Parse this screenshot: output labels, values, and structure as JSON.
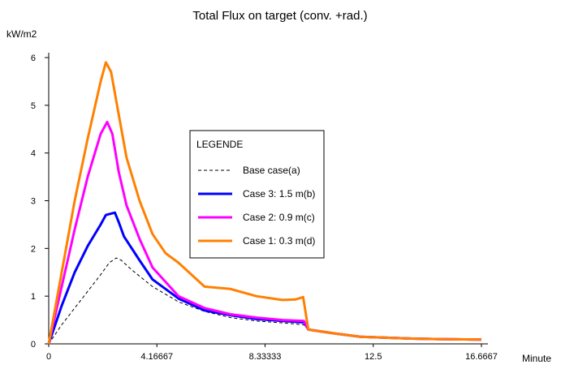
{
  "chart_data": {
    "type": "line",
    "title": "Total Flux on target (conv. +rad.)",
    "ylabel": "kW/m2",
    "xlabel": "Minute",
    "xlim": [
      0,
      16.6667
    ],
    "ylim": [
      0,
      6
    ],
    "x_ticks": [
      "0",
      "4.16667",
      "8.33333",
      "12.5",
      "16.6667"
    ],
    "x_tick_values": [
      0,
      4.16667,
      8.33333,
      12.5,
      16.6667
    ],
    "y_ticks": [
      "0",
      "1",
      "2",
      "3",
      "4",
      "5",
      "6"
    ],
    "y_tick_values": [
      0,
      1,
      2,
      3,
      4,
      5,
      6
    ],
    "grid": false,
    "legend": {
      "title": "LEGENDE",
      "placement": "center"
    },
    "series": [
      {
        "name": "Base case(a)",
        "color": "#000000",
        "style": "dashed",
        "x": [
          0,
          0.5,
          1.0,
          1.5,
          2.0,
          2.33,
          2.6,
          2.8,
          3.2,
          4.0,
          5.0,
          6.0,
          7.0,
          8.0,
          9.0,
          9.83,
          10.0,
          11.0,
          12.0,
          13.0,
          14.0,
          15.0,
          16.6667
        ],
        "y": [
          0,
          0.4,
          0.75,
          1.1,
          1.45,
          1.7,
          1.8,
          1.75,
          1.55,
          1.2,
          0.88,
          0.68,
          0.55,
          0.48,
          0.44,
          0.4,
          0.3,
          0.22,
          0.15,
          0.13,
          0.11,
          0.1,
          0.09
        ]
      },
      {
        "name": "Case 3: 1.5 m(b)",
        "color": "#0000ff",
        "style": "solid",
        "x": [
          0,
          0.5,
          1.0,
          1.5,
          2.0,
          2.2,
          2.4,
          2.55,
          2.7,
          2.9,
          3.5,
          4.0,
          5.0,
          6.0,
          7.0,
          8.0,
          9.0,
          9.83,
          10.0,
          11.0,
          12.0,
          13.0,
          14.0,
          15.0,
          16.6667
        ],
        "y": [
          0,
          0.8,
          1.5,
          2.05,
          2.5,
          2.7,
          2.73,
          2.75,
          2.55,
          2.25,
          1.75,
          1.35,
          0.95,
          0.7,
          0.6,
          0.52,
          0.48,
          0.45,
          0.3,
          0.22,
          0.15,
          0.13,
          0.11,
          0.1,
          0.09
        ]
      },
      {
        "name": "Case 2: 0.9 m(c)",
        "color": "#ff00ff",
        "style": "solid",
        "x": [
          0,
          0.5,
          1.0,
          1.5,
          2.0,
          2.25,
          2.45,
          2.7,
          3.0,
          3.5,
          4.0,
          5.0,
          6.0,
          7.0,
          8.0,
          9.0,
          9.83,
          10.0,
          11.0,
          12.0,
          13.0,
          14.0,
          15.0,
          16.6667
        ],
        "y": [
          0,
          1.2,
          2.4,
          3.5,
          4.4,
          4.65,
          4.4,
          3.6,
          2.9,
          2.2,
          1.6,
          1.0,
          0.75,
          0.62,
          0.55,
          0.5,
          0.48,
          0.3,
          0.22,
          0.15,
          0.13,
          0.11,
          0.1,
          0.09
        ]
      },
      {
        "name": "Case 1: 0.3 m(d)",
        "color": "#ff8000",
        "style": "solid",
        "x": [
          0,
          0.5,
          1.0,
          1.5,
          2.0,
          2.2,
          2.4,
          2.7,
          3.0,
          3.5,
          4.0,
          4.5,
          5.0,
          6.0,
          7.0,
          8.0,
          9.0,
          9.5,
          9.8,
          10.0,
          11.0,
          12.0,
          13.0,
          14.0,
          15.0,
          16.6667
        ],
        "y": [
          0,
          1.5,
          3.0,
          4.3,
          5.5,
          5.9,
          5.7,
          4.8,
          3.9,
          3.0,
          2.3,
          1.9,
          1.7,
          1.2,
          1.15,
          1.0,
          0.92,
          0.93,
          0.98,
          0.3,
          0.22,
          0.15,
          0.13,
          0.11,
          0.1,
          0.09
        ]
      }
    ]
  }
}
